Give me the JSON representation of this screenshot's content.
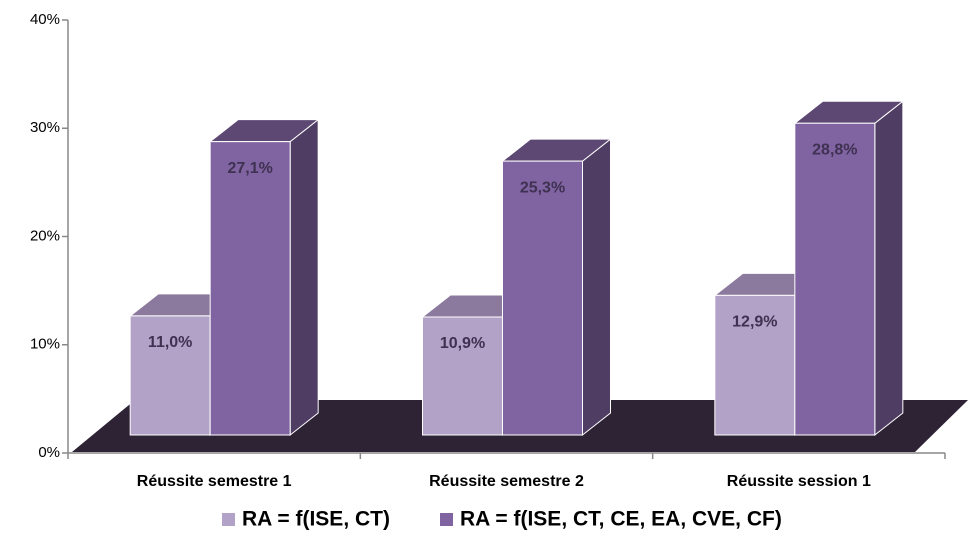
{
  "chart_data": {
    "type": "bar3d",
    "categories": [
      "Réussite semestre 1",
      "Réussite semestre 2",
      "Réussite session 1"
    ],
    "series": [
      {
        "name": "RA = f(ISE, CT)",
        "color": "#b3a2c7",
        "values": [
          11.0,
          10.9,
          12.9
        ],
        "value_labels": [
          "11,0%",
          "10,9%",
          "12,9%"
        ]
      },
      {
        "name": "RA = f(ISE, CT, CE, EA, CVE, CF)",
        "color": "#8064a2",
        "values": [
          27.1,
          25.3,
          28.8
        ],
        "value_labels": [
          "27,1%",
          "25,3%",
          "28,8%"
        ]
      }
    ],
    "ylim": [
      0,
      40
    ],
    "yticks": [
      {
        "value": 0,
        "label": "0%"
      },
      {
        "value": 10,
        "label": "10%"
      },
      {
        "value": 20,
        "label": "20%"
      },
      {
        "value": 30,
        "label": "30%"
      },
      {
        "value": 40,
        "label": "40%"
      }
    ],
    "legend": "bottom"
  }
}
